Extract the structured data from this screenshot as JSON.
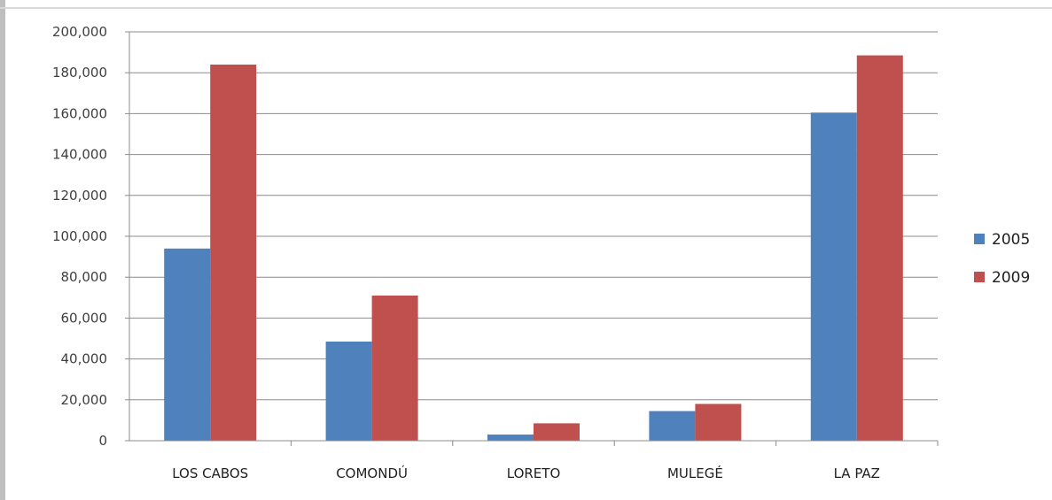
{
  "chart_data": {
    "type": "bar",
    "categories": [
      "LOS CABOS",
      "COMONDÚ",
      "LORETO",
      "MULEGÉ",
      "LA PAZ"
    ],
    "series": [
      {
        "name": "2005",
        "color": "#4f81bd",
        "values": [
          94000,
          48500,
          3000,
          14500,
          160500
        ]
      },
      {
        "name": "2009",
        "color": "#c0504d",
        "values": [
          184000,
          71000,
          8500,
          18000,
          188500
        ]
      }
    ],
    "ylim": [
      0,
      200000
    ],
    "yticks": [
      0,
      20000,
      40000,
      60000,
      80000,
      100000,
      120000,
      140000,
      160000,
      180000,
      200000
    ],
    "ytick_labels": [
      "0",
      "20,000",
      "40,000",
      "60,000",
      "80,000",
      "100,000",
      "120,000",
      "140,000",
      "160,000",
      "180,000",
      "200,000"
    ],
    "grid": true,
    "legend_position": "right",
    "title": "",
    "xlabel": "",
    "ylabel": ""
  }
}
